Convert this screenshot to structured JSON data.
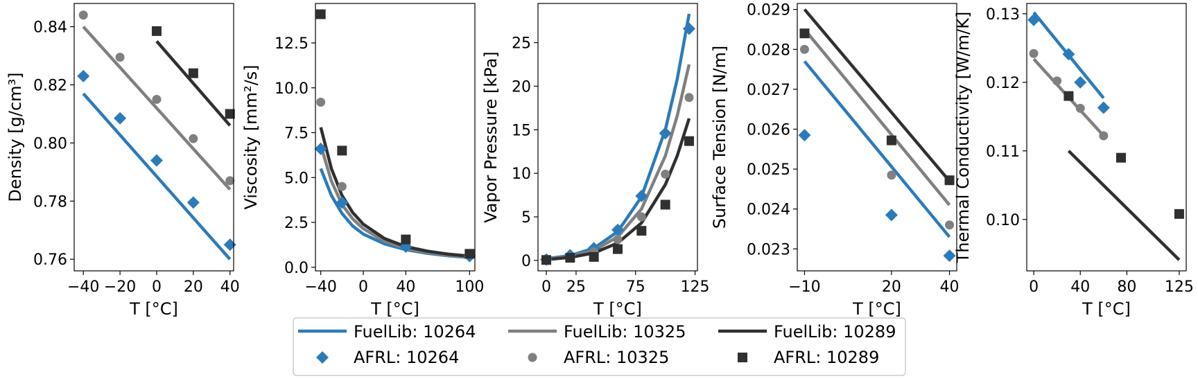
{
  "legend": {
    "entries": [
      {
        "label": "FuelLib: 10264",
        "kind": "line",
        "color": "#2b7bba"
      },
      {
        "label": "AFRL: 10264",
        "kind": "diamond",
        "color": "#2b7bba"
      },
      {
        "label": "FuelLib: 10325",
        "kind": "line",
        "color": "#808080"
      },
      {
        "label": "AFRL: 10325",
        "kind": "circle",
        "color": "#808080"
      },
      {
        "label": "FuelLib: 10289",
        "kind": "line",
        "color": "#303030"
      },
      {
        "label": "AFRL: 10289",
        "kind": "square",
        "color": "#303030"
      }
    ]
  },
  "chart_data": [
    {
      "type": "line",
      "xlabel": "T [°C]",
      "ylabel": "Density [g/cm³]",
      "xlim": [
        -45,
        42
      ],
      "ylim": [
        0.756,
        0.848
      ],
      "xticks": [
        {
          "v": -40,
          "t": "−40"
        },
        {
          "v": -20,
          "t": "−20"
        },
        {
          "v": 0,
          "t": "0"
        },
        {
          "v": 20,
          "t": "20"
        },
        {
          "v": 40,
          "t": "40"
        }
      ],
      "yticks": [
        {
          "v": 0.76,
          "t": "0.76"
        },
        {
          "v": 0.78,
          "t": "0.78"
        },
        {
          "v": 0.8,
          "t": "0.80"
        },
        {
          "v": 0.82,
          "t": "0.82"
        },
        {
          "v": 0.84,
          "t": "0.84"
        }
      ],
      "lines": [
        {
          "name": "FuelLib: 10264",
          "color": "#2b7bba",
          "x": [
            -40,
            40
          ],
          "y": [
            0.817,
            0.76
          ]
        },
        {
          "name": "FuelLib: 10325",
          "color": "#808080",
          "x": [
            -40,
            40
          ],
          "y": [
            0.84,
            0.784
          ]
        },
        {
          "name": "FuelLib: 10289",
          "color": "#303030",
          "x": [
            0,
            40
          ],
          "y": [
            0.835,
            0.806
          ]
        }
      ],
      "points": [
        {
          "name": "AFRL: 10264",
          "marker": "diamond",
          "color": "#2b7bba",
          "x": [
            -40,
            -20,
            0,
            20,
            40
          ],
          "y": [
            0.823,
            0.8085,
            0.794,
            0.7795,
            0.765
          ]
        },
        {
          "name": "AFRL: 10325",
          "marker": "circle",
          "color": "#808080",
          "x": [
            -40,
            -20,
            0,
            20,
            40
          ],
          "y": [
            0.844,
            0.8295,
            0.815,
            0.8015,
            0.787
          ]
        },
        {
          "name": "AFRL: 10289",
          "marker": "square",
          "color": "#303030",
          "x": [
            0,
            20,
            40
          ],
          "y": [
            0.8385,
            0.824,
            0.81
          ]
        }
      ]
    },
    {
      "type": "line",
      "xlabel": "T [°C]",
      "ylabel": "Viscosity [mm²/s]",
      "xlim": [
        -45,
        105
      ],
      "ylim": [
        -0.2,
        14.7
      ],
      "xticks": [
        {
          "v": -40,
          "t": "−40"
        },
        {
          "v": 0,
          "t": "0"
        },
        {
          "v": 40,
          "t": "40"
        },
        {
          "v": 100,
          "t": "100"
        }
      ],
      "yticks": [
        {
          "v": 0,
          "t": "0.0"
        },
        {
          "v": 2.5,
          "t": "2.5"
        },
        {
          "v": 5,
          "t": "5.0"
        },
        {
          "v": 7.5,
          "t": "7.5"
        },
        {
          "v": 10,
          "t": "10.0"
        },
        {
          "v": 12.5,
          "t": "12.5"
        }
      ],
      "lines": [
        {
          "name": "FuelLib: 10264",
          "color": "#2b7bba",
          "x": [
            -40,
            -30,
            -20,
            -10,
            0,
            20,
            40,
            60,
            80,
            100
          ],
          "y": [
            5.5,
            4.0,
            3.0,
            2.3,
            1.85,
            1.3,
            0.98,
            0.78,
            0.64,
            0.55
          ]
        },
        {
          "name": "FuelLib: 10325",
          "color": "#808080",
          "x": [
            -40,
            -30,
            -20,
            -10,
            0,
            20,
            40,
            60,
            80,
            100
          ],
          "y": [
            6.8,
            4.8,
            3.5,
            2.7,
            2.15,
            1.45,
            1.05,
            0.82,
            0.67,
            0.57
          ]
        },
        {
          "name": "FuelLib: 10289",
          "color": "#303030",
          "x": [
            -40,
            -30,
            -20,
            -10,
            0,
            20,
            40,
            60,
            80,
            100
          ],
          "y": [
            7.8,
            5.5,
            4.0,
            3.05,
            2.4,
            1.6,
            1.15,
            0.9,
            0.73,
            0.62
          ]
        }
      ],
      "points": [
        {
          "name": "AFRL: 10264",
          "marker": "diamond",
          "color": "#2b7bba",
          "x": [
            -40,
            -20,
            40,
            100
          ],
          "y": [
            6.6,
            3.6,
            1.15,
            0.62
          ]
        },
        {
          "name": "AFRL: 10325",
          "marker": "circle",
          "color": "#808080",
          "x": [
            -40,
            -20
          ],
          "y": [
            9.2,
            4.5
          ]
        },
        {
          "name": "AFRL: 10289",
          "marker": "square",
          "color": "#303030",
          "x": [
            -40,
            -20,
            40,
            100
          ],
          "y": [
            14.1,
            6.5,
            1.55,
            0.75
          ]
        }
      ]
    },
    {
      "type": "line",
      "xlabel": "T [°C]",
      "ylabel": "Vapor Pressure [kPa]",
      "xlim": [
        -7,
        127
      ],
      "ylim": [
        -1.2,
        29.5
      ],
      "xticks": [
        {
          "v": 0,
          "t": "0"
        },
        {
          "v": 25,
          "t": "25"
        },
        {
          "v": 75,
          "t": "75"
        },
        {
          "v": 125,
          "t": "125"
        }
      ],
      "yticks": [
        {
          "v": 0,
          "t": "0"
        },
        {
          "v": 5,
          "t": "5"
        },
        {
          "v": 10,
          "t": "10"
        },
        {
          "v": 15,
          "t": "15"
        },
        {
          "v": 20,
          "t": "20"
        },
        {
          "v": 25,
          "t": "25"
        }
      ],
      "lines": [
        {
          "name": "FuelLib: 10264",
          "color": "#2b7bba",
          "x": [
            0,
            20,
            40,
            60,
            80,
            100,
            110,
            120
          ],
          "y": [
            0.2,
            0.55,
            1.4,
            3.3,
            7.3,
            15.0,
            20.8,
            28.3
          ]
        },
        {
          "name": "FuelLib: 10325",
          "color": "#808080",
          "x": [
            0,
            20,
            40,
            60,
            80,
            100,
            110,
            120
          ],
          "y": [
            0.15,
            0.45,
            1.15,
            2.7,
            5.9,
            12.0,
            16.6,
            22.5
          ]
        },
        {
          "name": "FuelLib: 10289",
          "color": "#303030",
          "x": [
            0,
            20,
            40,
            60,
            80,
            100,
            110,
            120
          ],
          "y": [
            0.1,
            0.35,
            0.85,
            2.0,
            4.3,
            8.7,
            12.0,
            16.3
          ]
        }
      ],
      "points": [
        {
          "name": "AFRL: 10264",
          "marker": "diamond",
          "color": "#2b7bba",
          "x": [
            0,
            20,
            40,
            60,
            80,
            100,
            120
          ],
          "y": [
            0.1,
            0.6,
            1.4,
            3.5,
            7.4,
            14.6,
            26.6
          ]
        },
        {
          "name": "AFRL: 10325",
          "marker": "circle",
          "color": "#808080",
          "x": [
            0,
            20,
            40,
            60,
            80,
            100,
            120
          ],
          "y": [
            0.1,
            0.4,
            1.0,
            2.4,
            5.0,
            9.9,
            18.7
          ]
        },
        {
          "name": "AFRL: 10289",
          "marker": "square",
          "color": "#303030",
          "x": [
            0,
            20,
            40,
            60,
            80,
            100,
            120
          ],
          "y": [
            0.05,
            0.3,
            0.4,
            1.3,
            3.4,
            6.4,
            13.7
          ]
        }
      ]
    },
    {
      "type": "line",
      "xlabel": "T [°C]",
      "ylabel": "Surface Tension [N/m]",
      "xlim": [
        -12.5,
        42.5
      ],
      "ylim": [
        0.02245,
        0.02915
      ],
      "xticks": [
        {
          "v": -10,
          "t": "−10"
        },
        {
          "v": 20,
          "t": "20"
        },
        {
          "v": 40,
          "t": "40"
        }
      ],
      "yticks": [
        {
          "v": 0.023,
          "t": "0.023"
        },
        {
          "v": 0.024,
          "t": "0.024"
        },
        {
          "v": 0.025,
          "t": "0.025"
        },
        {
          "v": 0.026,
          "t": "0.026"
        },
        {
          "v": 0.027,
          "t": "0.027"
        },
        {
          "v": 0.028,
          "t": "0.028"
        },
        {
          "v": 0.029,
          "t": "0.029"
        }
      ],
      "lines": [
        {
          "name": "FuelLib: 10264",
          "color": "#2b7bba",
          "x": [
            -10,
            40
          ],
          "y": [
            0.0277,
            0.0233
          ]
        },
        {
          "name": "FuelLib: 10325",
          "color": "#808080",
          "x": [
            -10,
            40
          ],
          "y": [
            0.0285,
            0.0241
          ]
        },
        {
          "name": "FuelLib: 10289",
          "color": "#303030",
          "x": [
            -10,
            40
          ],
          "y": [
            0.029,
            0.0247
          ]
        }
      ],
      "points": [
        {
          "name": "AFRL: 10264",
          "marker": "diamond",
          "color": "#2b7bba",
          "x": [
            -10,
            20,
            40
          ],
          "y": [
            0.02585,
            0.02385,
            0.02283
          ]
        },
        {
          "name": "AFRL: 10325",
          "marker": "circle",
          "color": "#808080",
          "x": [
            -10,
            20,
            40
          ],
          "y": [
            0.028,
            0.02485,
            0.0236
          ]
        },
        {
          "name": "AFRL: 10289",
          "marker": "square",
          "color": "#303030",
          "x": [
            -10,
            20,
            40
          ],
          "y": [
            0.0284,
            0.02572,
            0.02472
          ]
        }
      ]
    },
    {
      "type": "line",
      "xlabel": "T [°C]",
      "ylabel": "Thermal Conductivity [W/m/K]",
      "xlim": [
        -6,
        131
      ],
      "ylim": [
        0.0925,
        0.1315
      ],
      "xticks": [
        {
          "v": 0,
          "t": "0"
        },
        {
          "v": 40,
          "t": "40"
        },
        {
          "v": 80,
          "t": "80"
        },
        {
          "v": 125,
          "t": "125"
        }
      ],
      "yticks": [
        {
          "v": 0.1,
          "t": "0.10"
        },
        {
          "v": 0.11,
          "t": "0.11"
        },
        {
          "v": 0.12,
          "t": "0.12"
        },
        {
          "v": 0.13,
          "t": "0.13"
        }
      ],
      "lines": [
        {
          "name": "FuelLib: 10264",
          "color": "#2b7bba",
          "x": [
            0,
            60
          ],
          "y": [
            0.1302,
            0.1177
          ]
        },
        {
          "name": "FuelLib: 10325",
          "color": "#808080",
          "x": [
            0,
            60
          ],
          "y": [
            0.1234,
            0.1122
          ]
        },
        {
          "name": "FuelLib: 10289",
          "color": "#303030",
          "x": [
            30,
            125
          ],
          "y": [
            0.11,
            0.0941
          ]
        }
      ],
      "points": [
        {
          "name": "AFRL: 10264",
          "marker": "diamond",
          "color": "#2b7bba",
          "x": [
            0,
            30,
            40,
            60
          ],
          "y": [
            0.1291,
            0.1241,
            0.12,
            0.1163
          ]
        },
        {
          "name": "AFRL: 10325",
          "marker": "circle",
          "color": "#808080",
          "x": [
            0,
            20,
            40,
            60
          ],
          "y": [
            0.1242,
            0.1202,
            0.1162,
            0.1122
          ]
        },
        {
          "name": "AFRL: 10289",
          "marker": "square",
          "color": "#303030",
          "x": [
            30,
            75,
            125
          ],
          "y": [
            0.118,
            0.109,
            0.1008
          ]
        }
      ]
    }
  ]
}
